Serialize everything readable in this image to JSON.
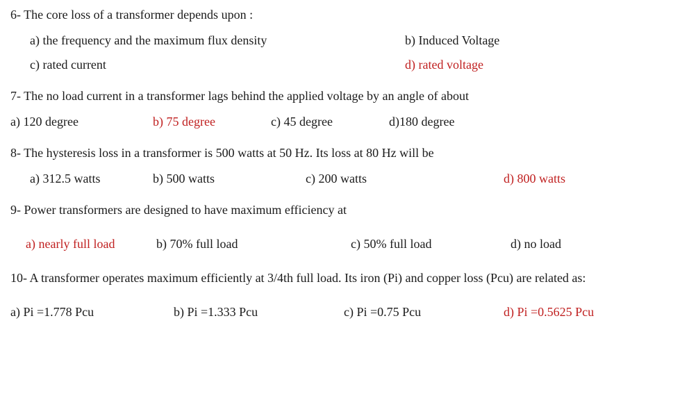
{
  "text_color": "#1a1a1a",
  "answer_color": "#c02020",
  "background_color": "#ffffff",
  "font_family": "Times New Roman",
  "font_size_pt": 14,
  "questions": [
    {
      "number": "6",
      "text": "6- The core loss of a transformer depends  upon :",
      "options": {
        "a": "a) the frequency and the maximum flux density",
        "b": "b)  Induced Voltage",
        "c": "c) rated current",
        "d": "d) rated voltage"
      },
      "answer_key": "d"
    },
    {
      "number": "7",
      "text": "7- The no load current in a transformer lags behind the applied voltage by an angle of about",
      "options": {
        "a": "a) 120 degree",
        "b": "b) 75 degree",
        "c": "c) 45 degree",
        "d": "d)180 degree"
      },
      "answer_key": "b"
    },
    {
      "number": "8",
      "text": "8- The hysteresis loss in a transformer is 500 watts at 50 Hz. Its loss at 80 Hz will be",
      "options": {
        "a": "a) 312.5 watts",
        "b": "b) 500 watts",
        "c": "c) 200 watts",
        "d": "d) 800 watts"
      },
      "answer_key": "d"
    },
    {
      "number": "9",
      "text": "9-  Power transformers are designed to have maximum efficiency at",
      "options": {
        "a": "a) nearly full load",
        "b": "b)   70% full load",
        "c": "c) 50% full load",
        "d": "d) no load"
      },
      "answer_key": "a"
    },
    {
      "number": "10",
      "text": "10- A transformer operates maximum efficiently at 3/4th full load. Its iron (Pi) and copper loss (Pcu) are  related as:",
      "options": {
        "a": "a) Pi =1.778 Pcu",
        "b": "b) Pi =1.333 Pcu",
        "c": "c) Pi =0.75 Pcu",
        "d": "d) Pi =0.5625 Pcu"
      },
      "answer_key": "d"
    }
  ]
}
